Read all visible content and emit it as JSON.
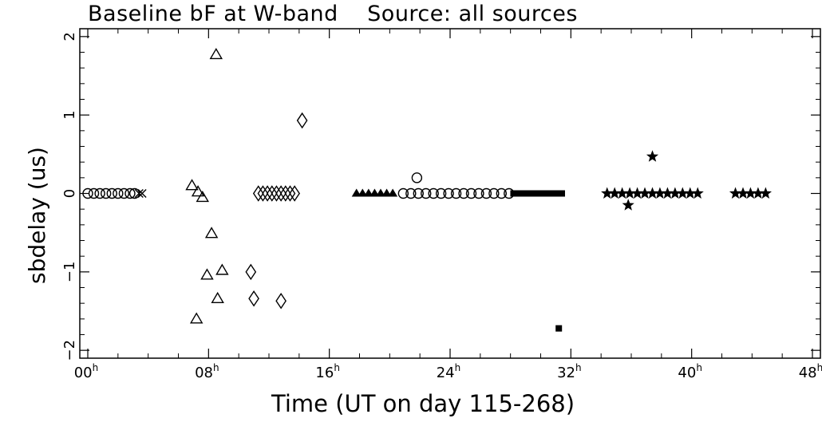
{
  "chart_data": {
    "type": "scatter",
    "title_left": "Baseline bF at W-band",
    "title_right": "Source: all sources",
    "xlabel": "Time (UT on day 115-268)",
    "ylabel": "sbdelay (us)",
    "xlim": [
      0,
      48
    ],
    "ylim": [
      -2.1,
      2.1
    ],
    "x_ticks": [
      {
        "value": 0,
        "label": "00",
        "sup": "h"
      },
      {
        "value": 8,
        "label": "08",
        "sup": "h"
      },
      {
        "value": 16,
        "label": "16",
        "sup": "h"
      },
      {
        "value": 24,
        "label": "24",
        "sup": "h"
      },
      {
        "value": 32,
        "label": "32",
        "sup": "h"
      },
      {
        "value": 40,
        "label": "40",
        "sup": "h"
      },
      {
        "value": 48,
        "label": "48",
        "sup": "h"
      }
    ],
    "y_ticks": [
      {
        "value": -2,
        "label": "−2"
      },
      {
        "value": -1,
        "label": "−1"
      },
      {
        "value": 0,
        "label": "0"
      },
      {
        "value": 1,
        "label": "1"
      },
      {
        "value": 2,
        "label": "2"
      }
    ],
    "series": [
      {
        "marker": "circle",
        "points": [
          [
            0.0,
            0
          ],
          [
            0.4,
            0
          ],
          [
            0.8,
            0
          ],
          [
            1.2,
            0
          ],
          [
            1.6,
            0
          ],
          [
            2.0,
            0
          ],
          [
            2.4,
            0
          ],
          [
            2.8,
            0
          ],
          [
            3.1,
            0
          ],
          [
            21.8,
            0.2
          ],
          [
            20.9,
            0
          ],
          [
            21.4,
            0
          ],
          [
            21.9,
            0
          ],
          [
            22.4,
            0
          ],
          [
            22.9,
            0
          ],
          [
            23.4,
            0
          ],
          [
            23.9,
            0
          ],
          [
            24.4,
            0
          ],
          [
            24.9,
            0
          ],
          [
            25.4,
            0
          ],
          [
            25.9,
            0
          ],
          [
            26.4,
            0
          ],
          [
            26.9,
            0
          ],
          [
            27.4,
            0
          ],
          [
            27.9,
            0
          ]
        ]
      },
      {
        "marker": "cross",
        "points": [
          [
            3.4,
            0
          ],
          [
            3.6,
            0
          ]
        ]
      },
      {
        "marker": "triangle",
        "points": [
          [
            8.5,
            1.77
          ],
          [
            6.9,
            0.1
          ],
          [
            7.3,
            0.02
          ],
          [
            7.6,
            -0.05
          ],
          [
            8.2,
            -0.51
          ],
          [
            7.9,
            -1.04
          ],
          [
            8.9,
            -0.98
          ],
          [
            8.6,
            -1.34
          ],
          [
            7.2,
            -1.6
          ]
        ]
      },
      {
        "marker": "diamond",
        "points": [
          [
            14.2,
            0.93
          ],
          [
            10.8,
            -1.0
          ],
          [
            11.0,
            -1.34
          ],
          [
            12.8,
            -1.37
          ],
          [
            11.3,
            0
          ],
          [
            11.6,
            0
          ],
          [
            11.9,
            0
          ],
          [
            12.2,
            0
          ],
          [
            12.5,
            0
          ],
          [
            12.8,
            0
          ],
          [
            13.1,
            0
          ],
          [
            13.4,
            0
          ],
          [
            13.7,
            0
          ]
        ]
      },
      {
        "marker": "filled-triangle",
        "points": [
          [
            17.8,
            0
          ],
          [
            18.2,
            0
          ],
          [
            18.6,
            0
          ],
          [
            19.0,
            0
          ],
          [
            19.4,
            0
          ],
          [
            19.8,
            0
          ],
          [
            20.2,
            0
          ]
        ]
      },
      {
        "marker": "filled-square",
        "points": [
          [
            28.2,
            0
          ],
          [
            28.6,
            0
          ],
          [
            29.0,
            0
          ],
          [
            29.4,
            0
          ],
          [
            29.8,
            0
          ],
          [
            30.2,
            0
          ],
          [
            30.6,
            0
          ],
          [
            31.0,
            0
          ],
          [
            31.4,
            0
          ],
          [
            31.2,
            -1.72
          ]
        ]
      },
      {
        "marker": "star",
        "points": [
          [
            37.4,
            0.47
          ],
          [
            35.8,
            -0.15
          ],
          [
            34.4,
            0
          ],
          [
            34.9,
            0
          ],
          [
            35.4,
            0
          ],
          [
            35.9,
            0
          ],
          [
            36.4,
            0
          ],
          [
            36.9,
            0
          ],
          [
            37.4,
            0
          ],
          [
            37.9,
            0
          ],
          [
            38.4,
            0
          ],
          [
            38.9,
            0
          ],
          [
            39.4,
            0
          ],
          [
            39.9,
            0
          ],
          [
            40.4,
            0
          ],
          [
            42.9,
            0
          ],
          [
            43.4,
            0
          ],
          [
            43.9,
            0
          ],
          [
            44.4,
            0
          ],
          [
            44.9,
            0
          ]
        ]
      }
    ]
  }
}
